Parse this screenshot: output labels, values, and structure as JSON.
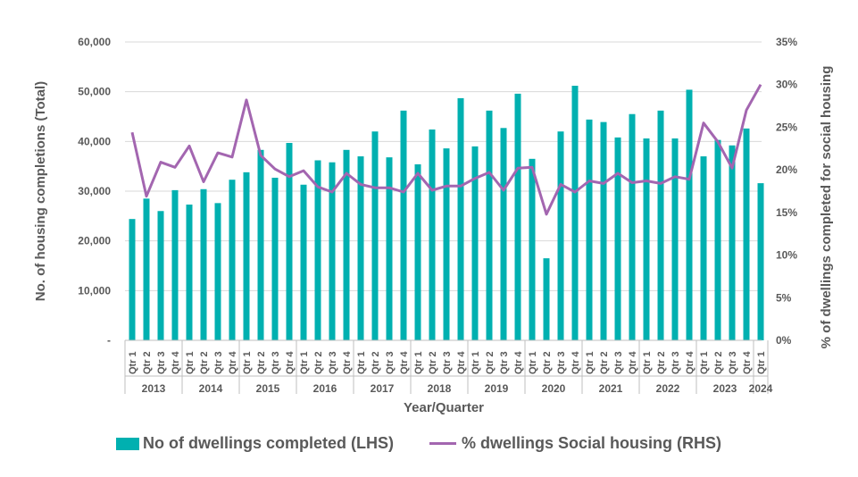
{
  "chart_data": {
    "type": "bar",
    "xlabel": "Year/Quarter",
    "ylabel": "No. of  housing completions (Total)",
    "y2label": "% of dwellings completed for social housing",
    "ylim": [
      0,
      60000
    ],
    "y2lim": [
      0,
      35
    ],
    "yticks": [
      "-",
      "10,000",
      "20,000",
      "30,000",
      "40,000",
      "50,000",
      "60,000"
    ],
    "y2ticks": [
      "0%",
      "5%",
      "10%",
      "15%",
      "20%",
      "25%",
      "30%",
      "35%"
    ],
    "years": [
      {
        "label": "2013",
        "quarters": [
          "Qtr 1",
          "Qtr 2",
          "Qtr 3",
          "Qtr 4"
        ]
      },
      {
        "label": "2014",
        "quarters": [
          "Qtr 1",
          "Qtr 2",
          "Qtr 3",
          "Qtr 4"
        ]
      },
      {
        "label": "2015",
        "quarters": [
          "Qtr 1",
          "Qtr 2",
          "Qtr 3",
          "Qtr 4"
        ]
      },
      {
        "label": "2016",
        "quarters": [
          "Qtr 1",
          "Qtr 2",
          "Qtr 3",
          "Qtr 4"
        ]
      },
      {
        "label": "2017",
        "quarters": [
          "Qtr 1",
          "Qtr 2",
          "Qtr 3",
          "Qtr 4"
        ]
      },
      {
        "label": "2018",
        "quarters": [
          "Qtr 1",
          "Qtr 2",
          "Qtr 3",
          "Qtr 4"
        ]
      },
      {
        "label": "2019",
        "quarters": [
          "Qtr 1",
          "Qtr 2",
          "Qtr 3",
          "Qtr 4"
        ]
      },
      {
        "label": "2020",
        "quarters": [
          "Qtr 1",
          "Qtr 2",
          "Qtr 3",
          "Qtr 4"
        ]
      },
      {
        "label": "2021",
        "quarters": [
          "Qtr 1",
          "Qtr 2",
          "Qtr 3",
          "Qtr 4"
        ]
      },
      {
        "label": "2022",
        "quarters": [
          "Qtr 1",
          "Qtr 2",
          "Qtr 3",
          "Qtr 4"
        ]
      },
      {
        "label": "2023",
        "quarters": [
          "Qtr 1",
          "Qtr 2",
          "Qtr 3",
          "Qtr 4"
        ]
      },
      {
        "label": "2024",
        "quarters": [
          "Qtr 1"
        ]
      }
    ],
    "series": [
      {
        "name": "No of dwellings completed (LHS)",
        "type": "bar",
        "axis": "left",
        "color": "#00B0B0",
        "values": [
          24400,
          28500,
          26000,
          30200,
          27300,
          30400,
          27600,
          32300,
          33800,
          38300,
          32700,
          39700,
          31300,
          36200,
          35800,
          38300,
          37000,
          42000,
          36800,
          46200,
          35400,
          42400,
          38600,
          48700,
          39000,
          46200,
          42700,
          49600,
          36500,
          16500,
          42000,
          51200,
          44400,
          43900,
          40800,
          45500,
          40600,
          46200,
          40600,
          50400,
          37000,
          40300,
          39200,
          42600,
          31600
        ]
      },
      {
        "name": "% dwellings Social housing (RHS)",
        "type": "line",
        "axis": "right",
        "color": "#A366B0",
        "values": [
          24.4,
          16.9,
          20.9,
          20.3,
          22.8,
          18.6,
          22.0,
          21.5,
          28.2,
          21.7,
          20.1,
          19.2,
          19.9,
          18.0,
          17.4,
          19.6,
          18.3,
          17.9,
          17.9,
          17.4,
          19.6,
          17.6,
          18.1,
          18.1,
          19.0,
          19.7,
          17.6,
          20.2,
          20.3,
          14.8,
          18.3,
          17.4,
          18.7,
          18.4,
          19.6,
          18.5,
          18.7,
          18.4,
          19.2,
          18.9,
          25.5,
          23.3,
          20.2,
          27.0,
          30.0
        ]
      }
    ],
    "legend_position": "bottom"
  },
  "legend": {
    "bar_label": "No of dwellings completed (LHS)",
    "line_label": "% dwellings Social housing (RHS)"
  }
}
